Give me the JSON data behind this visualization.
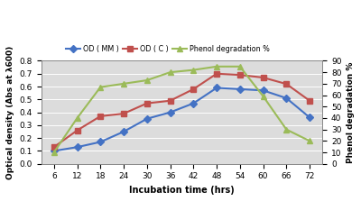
{
  "x": [
    6,
    12,
    18,
    24,
    30,
    36,
    42,
    48,
    54,
    60,
    66,
    72
  ],
  "od_mm": [
    0.1,
    0.13,
    0.17,
    0.25,
    0.35,
    0.4,
    0.47,
    0.59,
    0.58,
    0.57,
    0.51,
    0.36
  ],
  "od_c": [
    0.13,
    0.26,
    0.37,
    0.39,
    0.47,
    0.49,
    0.58,
    0.7,
    0.69,
    0.67,
    0.62,
    0.49
  ],
  "phenol_deg": [
    10,
    40,
    67,
    70,
    73,
    80,
    82,
    85,
    85,
    59,
    30,
    20
  ],
  "od_mm_color": "#4472C4",
  "od_c_color": "#C0504D",
  "phenol_color": "#9BBB59",
  "od_mm_label": "OD ( MM )",
  "od_c_label": "OD ( C )",
  "phenol_label": "Phenol degradation %",
  "xlabel": "Incubation time (hrs)",
  "ylabel_left": "Optical density (Abs at λ600)",
  "ylabel_right": "Phenol degradation %",
  "ylim_left": [
    0,
    0.8
  ],
  "ylim_right": [
    0,
    90
  ],
  "yticks_left": [
    0,
    0.1,
    0.2,
    0.3,
    0.4,
    0.5,
    0.6,
    0.7,
    0.8
  ],
  "yticks_right": [
    0,
    10,
    20,
    30,
    40,
    50,
    60,
    70,
    80,
    90
  ],
  "bg_color": "#DCDCDC",
  "marker_od": "D",
  "marker_phenol": "^",
  "marker_size": 4,
  "linewidth": 1.5
}
